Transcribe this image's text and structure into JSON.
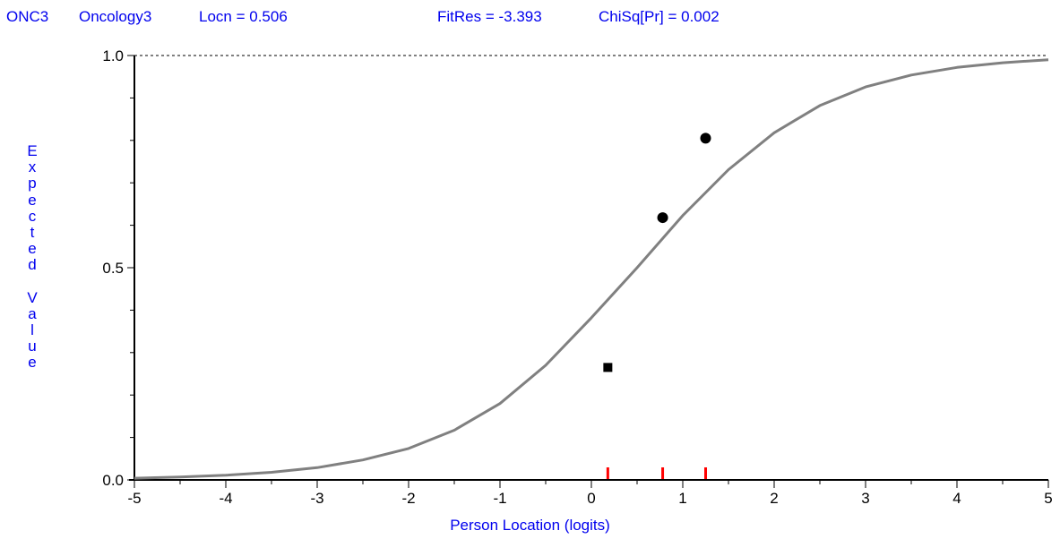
{
  "header": {
    "item_code": "ONC3",
    "item_name": "Oncology3",
    "location": "Locn = 0.506",
    "fit_residual": "FitRes = -3.393",
    "chi_square": "ChiSq[Pr] = 0.002"
  },
  "chart_data": {
    "type": "line",
    "xlabel": "Person Location (logits)",
    "ylabel": "Expected Value",
    "xlim": [
      -5,
      5
    ],
    "ylim": [
      0,
      1
    ],
    "x_ticks": [
      "-5",
      "-4",
      "-3",
      "-2",
      "-1",
      "0",
      "1",
      "2",
      "3",
      "4",
      "5"
    ],
    "y_ticks": [
      "0.0",
      "0.5",
      "1.0"
    ],
    "reference_line_y": 1.0,
    "series": [
      {
        "kind": "curve",
        "x": [
          -5.0,
          -4.5,
          -4.0,
          -3.5,
          -3.0,
          -2.5,
          -2.0,
          -1.5,
          -1.0,
          -0.5,
          0.0,
          0.5,
          1.0,
          1.5,
          2.0,
          2.5,
          3.0,
          3.5,
          4.0,
          4.5,
          5.0
        ],
        "y": [
          0.004,
          0.007,
          0.011,
          0.018,
          0.029,
          0.047,
          0.074,
          0.117,
          0.18,
          0.27,
          0.382,
          0.5,
          0.623,
          0.731,
          0.818,
          0.882,
          0.926,
          0.954,
          0.972,
          0.983,
          0.99
        ],
        "color": "#808080"
      },
      {
        "kind": "points",
        "x": [
          0.18,
          0.78,
          1.25
        ],
        "y": [
          0.265,
          0.618,
          0.805
        ],
        "color": "#000000"
      }
    ],
    "class_intervals": [
      0.18,
      0.78,
      1.25
    ],
    "class_interval_color": "#ff0000"
  }
}
